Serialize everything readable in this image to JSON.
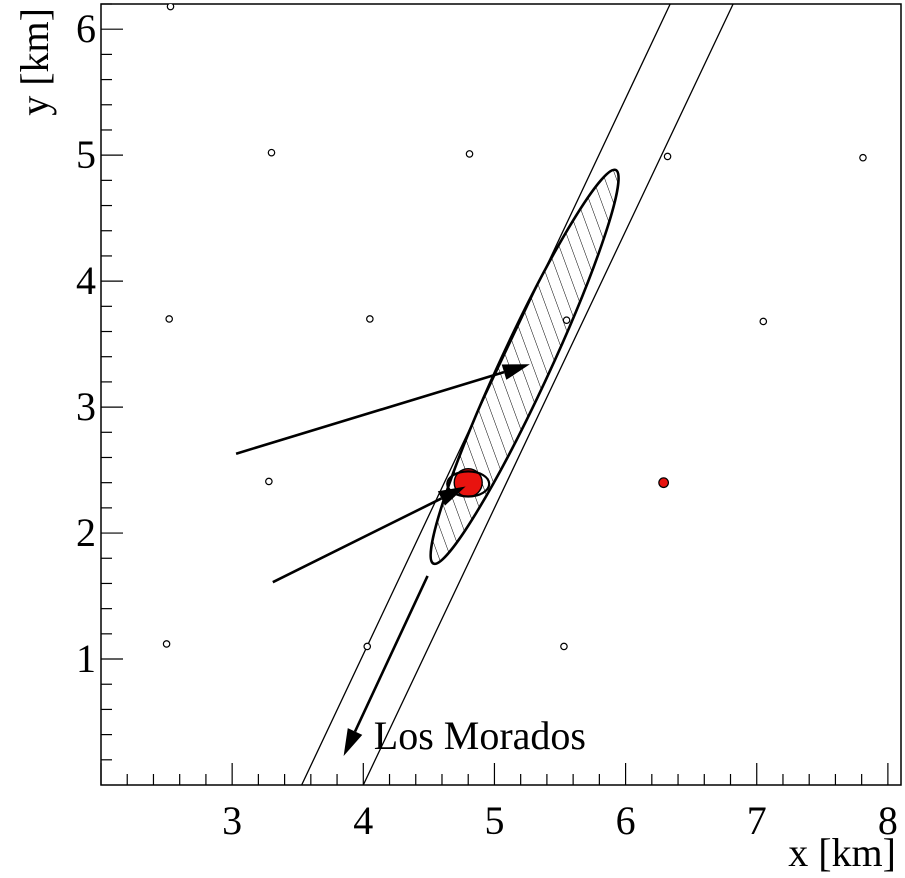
{
  "chart_data": {
    "type": "scatter",
    "title": "",
    "xlabel": "x [km]",
    "ylabel": "y [km]",
    "xlim": [
      2.0,
      8.1
    ],
    "ylim": [
      0.0,
      6.2
    ],
    "grid": false,
    "x_ticks": [
      3,
      4,
      5,
      6,
      7,
      8
    ],
    "y_ticks": [
      1,
      2,
      3,
      4,
      5,
      6
    ],
    "x_tick_labels": [
      "3",
      "4",
      "5",
      "6",
      "7",
      "8"
    ],
    "y_tick_labels": [
      "1",
      "2",
      "3",
      "4",
      "5",
      "6"
    ],
    "stations": [
      {
        "x": 2.53,
        "y": 6.18
      },
      {
        "x": 3.3,
        "y": 5.02
      },
      {
        "x": 4.81,
        "y": 5.01
      },
      {
        "x": 6.32,
        "y": 4.99
      },
      {
        "x": 7.81,
        "y": 4.98
      },
      {
        "x": 2.52,
        "y": 3.7
      },
      {
        "x": 4.05,
        "y": 3.7
      },
      {
        "x": 5.55,
        "y": 3.69
      },
      {
        "x": 7.05,
        "y": 3.68
      },
      {
        "x": 3.28,
        "y": 2.41
      },
      {
        "x": 2.5,
        "y": 1.12
      },
      {
        "x": 4.03,
        "y": 1.1
      },
      {
        "x": 5.53,
        "y": 1.1
      }
    ],
    "triggered_stations": [
      {
        "x": 6.29,
        "y": 2.4
      }
    ],
    "core": {
      "x": 4.8,
      "y": 2.4
    },
    "ellipse": {
      "cx": 5.23,
      "cy": 3.32,
      "semi_major": 1.71,
      "semi_minor": 0.19,
      "angle_deg": 66
    },
    "small_ellipse": {
      "cx": 4.8,
      "cy": 2.39,
      "rx": 0.16,
      "ry": 0.1
    },
    "band": {
      "lines": [
        [
          [
            3.53,
            0.0
          ],
          [
            6.34,
            6.2
          ]
        ],
        [
          [
            4.0,
            0.0
          ],
          [
            6.82,
            6.2
          ]
        ]
      ]
    },
    "arrows": [
      {
        "from": [
          3.03,
          2.63
        ],
        "to": [
          5.27,
          3.34
        ]
      },
      {
        "from": [
          3.31,
          1.61
        ],
        "to": [
          4.78,
          2.37
        ]
      },
      {
        "from": [
          4.49,
          1.66
        ],
        "to": [
          3.85,
          0.23
        ]
      }
    ],
    "annotations": [
      {
        "text": "Los Morados",
        "x": 4.08,
        "y": 0.39
      }
    ]
  }
}
